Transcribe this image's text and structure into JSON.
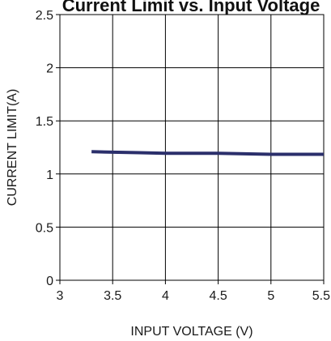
{
  "chart_data": {
    "type": "line",
    "title": "",
    "title_visible_fragment": "Current Limit vs. Input Voltage",
    "xlabel": "INPUT VOLTAGE (V)",
    "ylabel": "CURRENT LIMIT(A)",
    "xlim": [
      3,
      5.5
    ],
    "ylim": [
      0,
      2.5
    ],
    "x_ticks": [
      3,
      3.5,
      4,
      4.5,
      5,
      5.5
    ],
    "x_tick_labels": [
      "3",
      "3.5",
      "4",
      "4.5",
      "5",
      "5.5"
    ],
    "y_ticks": [
      0,
      0.5,
      1,
      1.5,
      2,
      2.5
    ],
    "y_tick_labels": [
      "0",
      "0.5",
      "1",
      "1.5",
      "2",
      "2.5"
    ],
    "grid": true,
    "legend": "none",
    "series": [
      {
        "color": "#2b2f6b",
        "x": [
          3.3,
          3.5,
          3.75,
          4.0,
          4.25,
          4.5,
          4.75,
          5.0,
          5.25,
          5.5
        ],
        "y": [
          1.21,
          1.205,
          1.2,
          1.195,
          1.195,
          1.195,
          1.19,
          1.185,
          1.185,
          1.185
        ]
      }
    ],
    "colors": {
      "line": "#2b2f6b",
      "grid": "#000000",
      "text": "#1a1a1a"
    }
  }
}
